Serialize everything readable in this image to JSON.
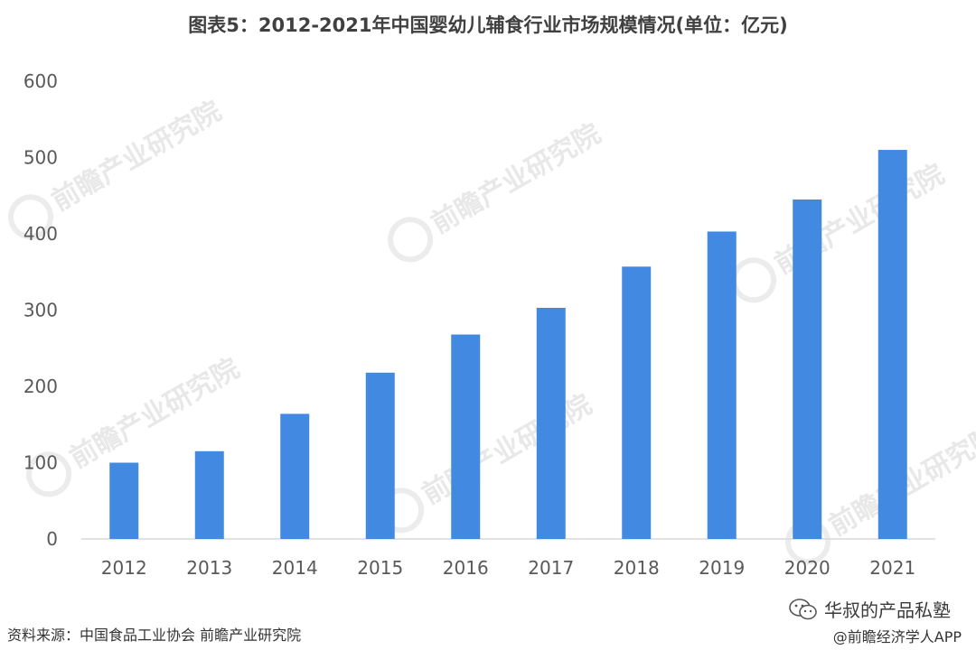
{
  "chart_data": {
    "type": "bar",
    "title": "图表5：2012-2021年中国婴幼儿辅食行业市场规模情况(单位：亿元)",
    "categories": [
      "2012",
      "2013",
      "2014",
      "2015",
      "2016",
      "2017",
      "2018",
      "2019",
      "2020",
      "2021"
    ],
    "values": [
      100,
      115,
      164,
      218,
      268,
      303,
      357,
      403,
      445,
      510
    ],
    "ylim": [
      0,
      600
    ],
    "yticks": [
      0,
      100,
      200,
      300,
      400,
      500,
      600
    ],
    "grid": false,
    "bar_color": "#4189e1"
  },
  "watermark": {
    "text": "前瞻产业研究院"
  },
  "footer": {
    "source": "资料来源：中国食品工业协会 前瞻产业研究院",
    "account": "华叔的产品私塾",
    "handle": "@前瞻经济学人APP"
  }
}
